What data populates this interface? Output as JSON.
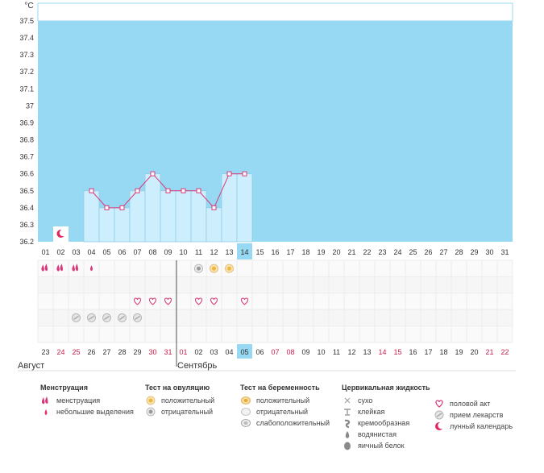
{
  "chart_data": {
    "type": "line",
    "ylabel": "°C",
    "ylim": [
      36.2,
      37.6
    ],
    "yticks": [
      "37.5",
      "37.4",
      "37.3",
      "37.2",
      "37.1",
      "37",
      "36.9",
      "36.8",
      "36.7",
      "36.6",
      "36.5",
      "36.4",
      "36.3",
      "36.2"
    ],
    "cycle_days": [
      "01",
      "02",
      "03",
      "04",
      "05",
      "06",
      "07",
      "08",
      "09",
      "10",
      "11",
      "12",
      "13",
      "14",
      "15",
      "16",
      "17",
      "18",
      "19",
      "20",
      "21",
      "22",
      "23",
      "24",
      "25",
      "26",
      "27",
      "28",
      "29",
      "30",
      "31"
    ],
    "highlight_cycle_day": "14",
    "temperatures": [
      null,
      null,
      null,
      36.5,
      36.4,
      36.4,
      36.5,
      36.6,
      36.5,
      36.5,
      36.5,
      36.4,
      36.6,
      36.6
    ],
    "menstruation": [
      "big",
      "big",
      "big",
      "small",
      null,
      null,
      null,
      null,
      null,
      null,
      null,
      null,
      null,
      null
    ],
    "moon_day": "02",
    "ovulation_tests": {
      "11": "negative",
      "12": "positive",
      "13": "positive"
    },
    "intercourse_days": [
      "07",
      "08",
      "09",
      "11",
      "12",
      "14"
    ],
    "medication_days": [
      "03",
      "04",
      "05",
      "06",
      "07"
    ],
    "dates": [
      "23",
      "24",
      "25",
      "26",
      "27",
      "28",
      "29",
      "30",
      "31",
      "01",
      "02",
      "03",
      "04",
      "05",
      "06",
      "07",
      "08",
      "09",
      "10",
      "11",
      "12",
      "13",
      "14",
      "15",
      "16",
      "17",
      "18",
      "19",
      "20",
      "21",
      "22"
    ],
    "weekend_dates": [
      "24",
      "25",
      "30",
      "31",
      "01",
      "07",
      "08",
      "14",
      "15",
      "21",
      "22"
    ],
    "highlight_date": "05",
    "month_labels": [
      {
        "label": "Август",
        "start_index": 0
      },
      {
        "label": "Сентябрь",
        "start_index": 9
      }
    ]
  },
  "legend": {
    "menstruation": {
      "title": "Менструация",
      "items": [
        "менструация",
        "небольшие выделения"
      ]
    },
    "ovulation": {
      "title": "Тест на овуляцию",
      "items": [
        "положительный",
        "отрицательный"
      ]
    },
    "pregnancy": {
      "title": "Тест на беременность",
      "items": [
        "положительный",
        "отрицательный",
        "слабоположительный"
      ]
    },
    "cervical": {
      "title": "Цервикальная жидкость",
      "items": [
        "сухо",
        "клейкая",
        "кремообразная",
        "водянистая",
        "яичный белок"
      ]
    },
    "other": {
      "items": [
        "половой акт",
        "прием лекарств",
        "лунный календарь"
      ]
    }
  },
  "colors": {
    "sky": "#97d8f2",
    "bar": "#cdeefc",
    "bar_border": "#8fcde8",
    "line": "#d9387a",
    "weekend": "#cc1c4c",
    "highlight": "#97d8f2"
  }
}
